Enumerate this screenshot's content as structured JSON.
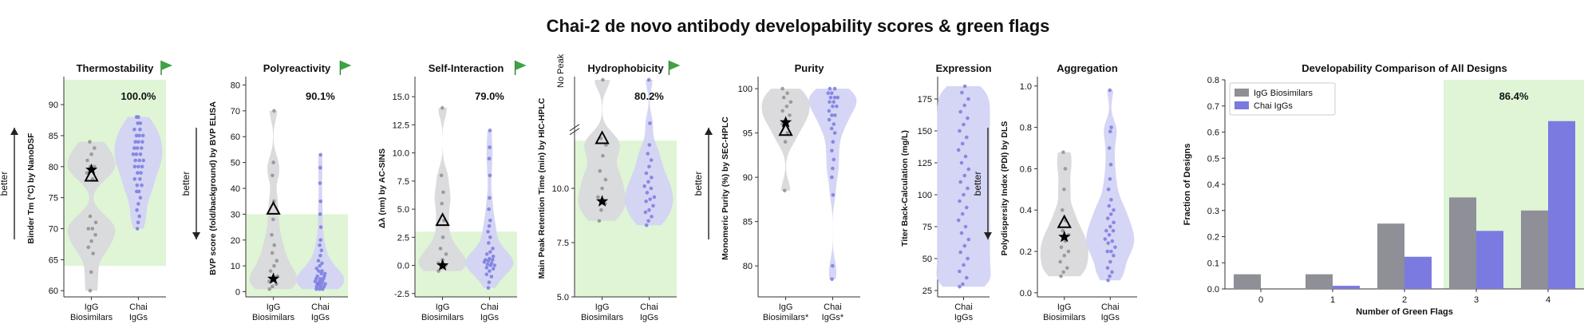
{
  "figure_title": "Chai-2 de novo antibody developability scores & green flags",
  "colors": {
    "igg": "#8e8f97",
    "chai": "#7a7ae0",
    "violin_igg": "#d9d9dc",
    "violin_chai": "#d3d3f4",
    "green_region": "#dff5d6",
    "flag": "#3fa244"
  },
  "chart_data": [
    {
      "id": "thermostability",
      "type": "violin",
      "title": "Thermostability",
      "green_flag": true,
      "percent_label": "100.0%",
      "ylabel": "Binder Tm (°C) by NanoDSF",
      "better_label": "better",
      "better_direction": "up",
      "ylim": [
        59,
        94
      ],
      "yticks": [
        60,
        65,
        70,
        75,
        80,
        85,
        90
      ],
      "green_range": [
        64,
        94
      ],
      "categories": [
        "IgG\nBiosimilars",
        "Chai\nIgGs"
      ],
      "series": [
        {
          "name": "IgG Biosimilars",
          "points": [
            60,
            63,
            66,
            67,
            68,
            69,
            70,
            70,
            71,
            72,
            78,
            79,
            80,
            80,
            81,
            82,
            83,
            84
          ],
          "star": 79.5,
          "triangle": 78.5
        },
        {
          "name": "Chai IgGs",
          "points": [
            70,
            71,
            72,
            73,
            74,
            75,
            76,
            76,
            77,
            77,
            78,
            78,
            79,
            79,
            80,
            80,
            80,
            81,
            81,
            81,
            82,
            82,
            82,
            83,
            83,
            83,
            84,
            84,
            84,
            85,
            85,
            85,
            86,
            86,
            87,
            87,
            88,
            88
          ]
        }
      ]
    },
    {
      "id": "polyreactivity",
      "type": "violin",
      "title": "Polyreactivity",
      "green_flag": true,
      "percent_label": "90.1%",
      "ylabel": "BVP score (fold/background) by BVP ELISA",
      "better_label": "better",
      "better_direction": "down",
      "ylim": [
        -2,
        82
      ],
      "yticks": [
        0,
        10,
        20,
        30,
        40,
        50,
        60,
        70,
        80
      ],
      "green_range": [
        -2,
        30
      ],
      "categories": [
        "IgG\nBiosimilars",
        "Chai\nIgGs"
      ],
      "series": [
        {
          "name": "IgG Biosimilars",
          "points": [
            1,
            2,
            3,
            4,
            5,
            6,
            8,
            10,
            12,
            15,
            18,
            22,
            28,
            35,
            45,
            50,
            70
          ],
          "star": 5,
          "triangle": 32
        },
        {
          "name": "Chai IgGs",
          "points": [
            1,
            1,
            1,
            2,
            2,
            2,
            3,
            3,
            3,
            3,
            4,
            4,
            4,
            5,
            5,
            5,
            6,
            6,
            7,
            7,
            8,
            8,
            9,
            10,
            11,
            12,
            14,
            16,
            18,
            20,
            25,
            30,
            35,
            42,
            48,
            53
          ]
        }
      ]
    },
    {
      "id": "self-interaction",
      "type": "violin",
      "title": "Self-Interaction",
      "green_flag": true,
      "percent_label": "79.0%",
      "ylabel": "Δλ (nm) by AC-SINS",
      "better_label": "",
      "better_direction": "",
      "ylim": [
        -2.8,
        16.5
      ],
      "yticks": [
        -2.5,
        0.0,
        2.5,
        5.0,
        7.5,
        10.0,
        12.5,
        15.0
      ],
      "green_range": [
        -2.8,
        3.0
      ],
      "categories": [
        "IgG\nBiosimilars",
        "Chai\nIgGs"
      ],
      "series": [
        {
          "name": "IgG Biosimilars",
          "points": [
            -0.5,
            -0.2,
            0.0,
            0.2,
            0.5,
            1.0,
            1.5,
            2.5,
            4.0,
            5.5,
            6.5,
            8.0,
            14.0
          ],
          "star": 0.0,
          "triangle": 4.0
        },
        {
          "name": "Chai IgGs",
          "points": [
            -2.0,
            -1.5,
            -1.0,
            -0.8,
            -0.5,
            -0.3,
            -0.2,
            0.0,
            0.0,
            0.1,
            0.2,
            0.3,
            0.4,
            0.5,
            0.5,
            0.6,
            0.8,
            1.0,
            1.2,
            1.5,
            2.0,
            2.5,
            3.0,
            3.5,
            4.0,
            5.0,
            6.0,
            8.0,
            9.5,
            10.5,
            12.0
          ]
        }
      ]
    },
    {
      "id": "hydrophobicity",
      "type": "violin",
      "title": "Hydrophobicity",
      "green_flag": true,
      "percent_label": "80.2%",
      "ylabel": "Main Peak Retention Time (min) by HIC-HPLC",
      "no_peak_label": "No Peak",
      "better_label": "",
      "better_direction": "",
      "ylim": [
        5,
        15
      ],
      "yticks": [
        5,
        7.5,
        10
      ],
      "green_range": [
        5,
        12.2
      ],
      "categories": [
        "IgG\nBiosimilars",
        "Chai\nIgGs"
      ],
      "series": [
        {
          "name": "IgG Biosimilars",
          "points": [
            8.5,
            9.0,
            9.3,
            9.6,
            10.0,
            10.4,
            10.8,
            11.5,
            12.0,
            12.3,
            15.0
          ],
          "star": 9.4,
          "triangle": 12.3
        },
        {
          "name": "Chai IgGs",
          "points": [
            8.3,
            8.5,
            8.7,
            8.9,
            9.0,
            9.2,
            9.4,
            9.5,
            9.6,
            9.8,
            10.0,
            10.1,
            10.3,
            10.5,
            10.7,
            11.0,
            11.3,
            11.6,
            12.0,
            13.0,
            15.0
          ]
        }
      ]
    },
    {
      "id": "purity",
      "type": "violin",
      "title": "Purity",
      "green_flag": false,
      "percent_label": "",
      "ylabel": "Monomeric Purity (%) by SEC-HPLC",
      "better_label": "better",
      "better_direction": "up",
      "ylim": [
        76.5,
        101
      ],
      "yticks": [
        80,
        85,
        90,
        95,
        100
      ],
      "green_range": null,
      "categories": [
        "IgG\nBiosimilars*",
        "Chai\nIgGs*"
      ],
      "series": [
        {
          "name": "IgG Biosimilars",
          "points": [
            88.5,
            94,
            95,
            96,
            96.5,
            97,
            97.5,
            98,
            98.5,
            99,
            99.5,
            100
          ],
          "star": 96.2,
          "triangle": 95.3
        },
        {
          "name": "Chai IgGs",
          "points": [
            78.5,
            80,
            88,
            90,
            91,
            92,
            93,
            94,
            95,
            95.5,
            96,
            96.5,
            97,
            97,
            97.5,
            98,
            98,
            98.5,
            98.5,
            99,
            99,
            99,
            99.5,
            99.5,
            100,
            100
          ]
        }
      ]
    },
    {
      "id": "expression",
      "type": "violin",
      "title": "Expression",
      "green_flag": false,
      "percent_label": "",
      "ylabel": "Titer Back-Calculation (mg/L)",
      "better_label": "",
      "better_direction": "",
      "ylim": [
        20,
        190
      ],
      "yticks": [
        25,
        50,
        75,
        100,
        125,
        150,
        175
      ],
      "green_range": null,
      "categories": [
        "Chai\nIgGs"
      ],
      "series": [
        {
          "name": "Chai IgGs",
          "points": [
            28,
            30,
            35,
            40,
            45,
            50,
            55,
            60,
            65,
            70,
            75,
            80,
            85,
            90,
            95,
            100,
            105,
            110,
            115,
            120,
            125,
            130,
            135,
            140,
            145,
            150,
            155,
            160,
            165,
            170,
            175,
            180,
            185
          ]
        }
      ]
    },
    {
      "id": "aggregation",
      "type": "violin",
      "title": "Aggregation",
      "green_flag": false,
      "percent_label": "",
      "ylabel": "Polydispersity Index (PDI) by DLS",
      "better_label": "better",
      "better_direction": "down",
      "ylim": [
        -0.02,
        1.03
      ],
      "yticks": [
        0.0,
        0.2,
        0.4,
        0.6,
        0.8,
        1.0
      ],
      "green_range": null,
      "categories": [
        "IgG\nBiosimilars",
        "Chai\nIgGs"
      ],
      "series": [
        {
          "name": "IgG Biosimilars",
          "points": [
            0.08,
            0.1,
            0.12,
            0.15,
            0.18,
            0.2,
            0.22,
            0.25,
            0.28,
            0.3,
            0.35,
            0.4,
            0.5,
            0.6,
            0.68
          ],
          "star": 0.27,
          "triangle": 0.34
        },
        {
          "name": "Chai IgGs",
          "points": [
            0.06,
            0.08,
            0.1,
            0.12,
            0.15,
            0.18,
            0.2,
            0.2,
            0.22,
            0.24,
            0.25,
            0.26,
            0.28,
            0.3,
            0.3,
            0.32,
            0.34,
            0.36,
            0.38,
            0.4,
            0.42,
            0.45,
            0.5,
            0.55,
            0.62,
            0.7,
            0.78,
            0.8,
            0.98
          ]
        }
      ]
    },
    {
      "id": "developability-comparison",
      "type": "bar",
      "title": "Developability Comparison of All Designs",
      "xlabel": "Number of Green Flags",
      "ylabel": "Fraction of Designs",
      "categories": [
        "0",
        "1",
        "2",
        "3",
        "4"
      ],
      "ylim": [
        0,
        0.8
      ],
      "yticks": [
        0.0,
        0.1,
        0.2,
        0.3,
        0.4,
        0.5,
        0.6,
        0.7,
        0.8
      ],
      "green_from_category": "3",
      "percent_label": "86.4%",
      "legend_position": "top-left",
      "series": [
        {
          "name": "IgG Biosimilars",
          "values": [
            0.056,
            0.056,
            0.25,
            0.35,
            0.3
          ]
        },
        {
          "name": "Chai IgGs",
          "values": [
            0.0,
            0.012,
            0.123,
            0.222,
            0.642
          ]
        }
      ]
    }
  ]
}
